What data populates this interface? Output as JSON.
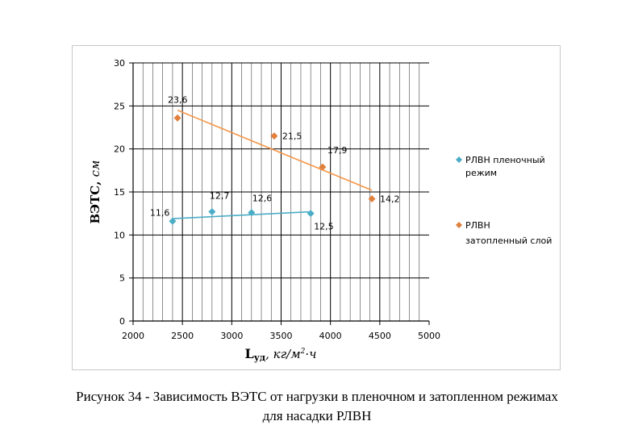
{
  "chart_data": {
    "type": "scatter",
    "title": "",
    "xlabel": "Lуд, кг/м²·ч",
    "xlabel_main": "L",
    "xlabel_sub": "уд",
    "xlabel_rest": ", кг/м",
    "xlabel_sup": "2",
    "xlabel_end": "·ч",
    "ylabel": "ВЭТС, см",
    "ylabel_main": "ВЭТС,",
    "ylabel_unit": "см",
    "xlim": [
      2000,
      5000
    ],
    "ylim": [
      0,
      30
    ],
    "xticks": [
      "2000",
      "2500",
      "3000",
      "3500",
      "4000",
      "4500",
      "5000"
    ],
    "yticks": [
      "0",
      "5",
      "10",
      "15",
      "20",
      "25",
      "30"
    ],
    "grid": true,
    "legend_position": "right",
    "series": [
      {
        "name": "РЛВН пленочный режим",
        "legend_lines": [
          "РЛВН пленочный",
          "режим"
        ],
        "color": "#4bacc6",
        "marker": "diamond",
        "points": [
          {
            "x": 2400,
            "y": 11.6,
            "label": "11,6"
          },
          {
            "x": 2800,
            "y": 12.7,
            "label": "12,7"
          },
          {
            "x": 3200,
            "y": 12.6,
            "label": "12,6"
          },
          {
            "x": 3800,
            "y": 12.5,
            "label": "12,5"
          }
        ],
        "trendline": [
          {
            "x": 2400,
            "y": 11.9
          },
          {
            "x": 3800,
            "y": 12.7
          }
        ]
      },
      {
        "name": "РЛВН затопленный слой",
        "legend_lines": [
          "РЛВН",
          "затопленный слой"
        ],
        "color": "#f79646",
        "marker_color": "#e0803c",
        "marker": "diamond",
        "points": [
          {
            "x": 2450,
            "y": 23.6,
            "label": "23,6"
          },
          {
            "x": 3430,
            "y": 21.5,
            "label": "21,5"
          },
          {
            "x": 3920,
            "y": 17.9,
            "label": "17,9"
          },
          {
            "x": 4420,
            "y": 14.2,
            "label": "14,2"
          }
        ],
        "trendline": [
          {
            "x": 2450,
            "y": 24.5
          },
          {
            "x": 4420,
            "y": 15.2
          }
        ]
      }
    ]
  },
  "caption": {
    "line1": "Рисунок 34 - Зависимость ВЭТС от нагрузки в пленочном и затопленном режимах",
    "line2": "для насадки РЛВН"
  }
}
